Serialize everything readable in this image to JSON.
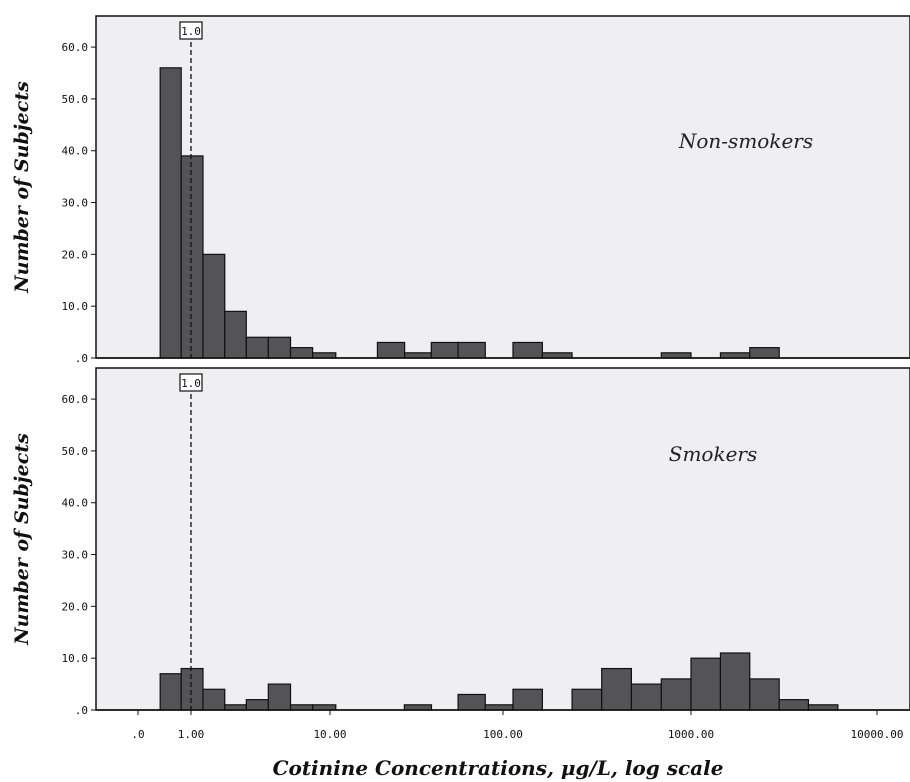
{
  "chart_data": {
    "type": "histogram",
    "x_scale": "log",
    "xlabel": "Cotinine Concentrations, μg/L, log scale",
    "ylabel": "Number of Subjects",
    "x_ticks": [
      {
        "value": 0,
        "label": ".0"
      },
      {
        "value": 1,
        "label": "1.00"
      },
      {
        "value": 10,
        "label": "10.00"
      },
      {
        "value": 100,
        "label": "100.00"
      },
      {
        "value": 1000,
        "label": "1000.00"
      },
      {
        "value": 10000,
        "label": "10000.00"
      }
    ],
    "y_ticks": [
      {
        "value": 0,
        "label": ".0"
      },
      {
        "value": 10,
        "label": "10.0"
      },
      {
        "value": 20,
        "label": "20.0"
      },
      {
        "value": 30,
        "label": "30.0"
      },
      {
        "value": 40,
        "label": "40.0"
      },
      {
        "value": 50,
        "label": "50.0"
      },
      {
        "value": 60,
        "label": "60.0"
      }
    ],
    "ylim": [
      0,
      66
    ],
    "bar_color": "#545458",
    "background_color": "#eeeef3",
    "reference_line": {
      "value": 1.0,
      "label": "1.0"
    },
    "panels": [
      {
        "title": "Non-smokers",
        "bins": [
          {
            "x0": 0.6,
            "x1": 0.85,
            "count": 56
          },
          {
            "x0": 0.85,
            "x1": 1.22,
            "count": 39
          },
          {
            "x0": 1.22,
            "x1": 1.75,
            "count": 20
          },
          {
            "x0": 1.75,
            "x1": 2.5,
            "count": 9
          },
          {
            "x0": 2.5,
            "x1": 3.6,
            "count": 4
          },
          {
            "x0": 3.6,
            "x1": 5.2,
            "count": 4
          },
          {
            "x0": 5.2,
            "x1": 7.5,
            "count": 2
          },
          {
            "x0": 7.5,
            "x1": 10.8,
            "count": 1
          },
          {
            "x0": 18.8,
            "x1": 27,
            "count": 3
          },
          {
            "x0": 27,
            "x1": 38.5,
            "count": 1
          },
          {
            "x0": 38.5,
            "x1": 55,
            "count": 3
          },
          {
            "x0": 55,
            "x1": 79,
            "count": 3
          },
          {
            "x0": 113,
            "x1": 162,
            "count": 3
          },
          {
            "x0": 162,
            "x1": 233,
            "count": 1
          },
          {
            "x0": 695,
            "x1": 1000,
            "count": 1
          },
          {
            "x0": 1440,
            "x1": 2070,
            "count": 1
          },
          {
            "x0": 2070,
            "x1": 2980,
            "count": 2
          }
        ]
      },
      {
        "title": "Smokers",
        "bins": [
          {
            "x0": 0.6,
            "x1": 0.85,
            "count": 7
          },
          {
            "x0": 0.85,
            "x1": 1.22,
            "count": 8
          },
          {
            "x0": 1.22,
            "x1": 1.75,
            "count": 4
          },
          {
            "x0": 1.75,
            "x1": 2.5,
            "count": 1
          },
          {
            "x0": 2.5,
            "x1": 3.6,
            "count": 2
          },
          {
            "x0": 3.6,
            "x1": 5.2,
            "count": 5
          },
          {
            "x0": 5.2,
            "x1": 7.5,
            "count": 1
          },
          {
            "x0": 7.5,
            "x1": 10.8,
            "count": 1
          },
          {
            "x0": 26.9,
            "x1": 38.6,
            "count": 1
          },
          {
            "x0": 55,
            "x1": 79,
            "count": 3
          },
          {
            "x0": 79,
            "x1": 113,
            "count": 1
          },
          {
            "x0": 113,
            "x1": 162,
            "count": 4
          },
          {
            "x0": 233,
            "x1": 335,
            "count": 4
          },
          {
            "x0": 335,
            "x1": 482,
            "count": 8
          },
          {
            "x0": 482,
            "x1": 695,
            "count": 5
          },
          {
            "x0": 695,
            "x1": 1000,
            "count": 6
          },
          {
            "x0": 1000,
            "x1": 1440,
            "count": 10
          },
          {
            "x0": 1440,
            "x1": 2070,
            "count": 11
          },
          {
            "x0": 2070,
            "x1": 2980,
            "count": 6
          },
          {
            "x0": 2980,
            "x1": 4280,
            "count": 2
          },
          {
            "x0": 4280,
            "x1": 6160,
            "count": 1
          }
        ]
      }
    ]
  }
}
